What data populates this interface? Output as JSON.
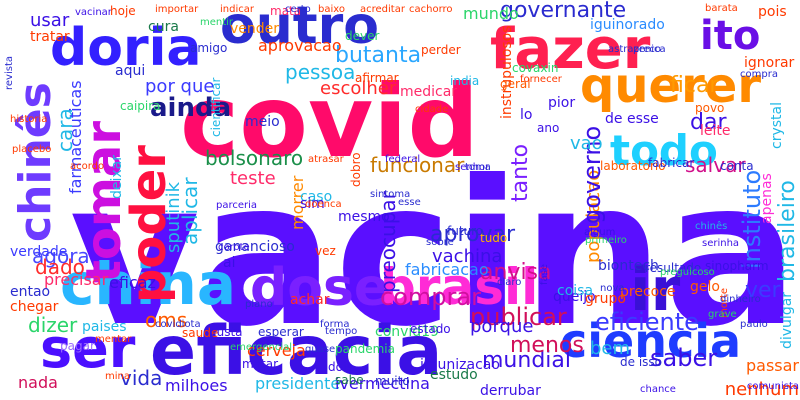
{
  "background": "#ffffff",
  "words": [
    {
      "text": "vacina",
      "color": "#5a0fff"
    },
    {
      "text": "covid",
      "color": "#ff0a6a"
    },
    {
      "text": "eficacia",
      "color": "#3b10e6"
    },
    {
      "text": "china",
      "color": "#29b6ff"
    },
    {
      "text": "dose",
      "color": "#7a20ff"
    },
    {
      "text": "brasil",
      "color": "#ff2bd6"
    },
    {
      "text": "ciencia",
      "color": "#1f3cff"
    },
    {
      "text": "ser",
      "color": "#4b0fff"
    },
    {
      "text": "fazer",
      "color": "#ff2050"
    },
    {
      "text": "querer",
      "color": "#ff8a00"
    },
    {
      "text": "outro",
      "color": "#2a2ccf"
    },
    {
      "text": "doria",
      "color": "#3320ff"
    },
    {
      "text": "tomar",
      "color": "#cc0fe0"
    },
    {
      "text": "poder",
      "color": "#ff1040"
    },
    {
      "text": "todo",
      "color": "#1ed0ff"
    },
    {
      "text": "ir",
      "color": "#3a10d6"
    },
    {
      "text": "ito",
      "color": "#6a0fe6"
    },
    {
      "text": "chinês",
      "color": "#6e3bff"
    },
    {
      "text": "governante",
      "color": "#2b2bcf"
    },
    {
      "text": "ainda",
      "color": "#1a1a8a"
    },
    {
      "text": "anvisa",
      "color": "#d10f8a"
    },
    {
      "text": "instituto",
      "color": "#2c7bff"
    },
    {
      "text": "comprar",
      "color": "#d10fa0"
    },
    {
      "text": "butanta",
      "color": "#2aa7ff"
    },
    {
      "text": "bolsonaro",
      "color": "#1b8f4a"
    },
    {
      "text": "funcionar",
      "color": "#c97a00"
    },
    {
      "text": "publicar",
      "color": "#d10f5a"
    },
    {
      "text": "tanto",
      "color": "#7a20ff"
    },
    {
      "text": "saber",
      "color": "#3b10e6"
    },
    {
      "text": "vida",
      "color": "#2a2ccf"
    },
    {
      "text": "aprovar",
      "color": "#2a2ccf"
    },
    {
      "text": "vachina",
      "color": "#3b10e6"
    },
    {
      "text": "agora",
      "color": "#4a4aff"
    },
    {
      "text": "dizer",
      "color": "#2ad56a"
    },
    {
      "text": "mundial",
      "color": "#3b10e6"
    },
    {
      "text": "eficiente",
      "color": "#3b3bff"
    },
    {
      "text": "menos",
      "color": "#d10f5a"
    },
    {
      "text": "oms",
      "color": "#ff5a00"
    },
    {
      "text": "ficar",
      "color": "#ff9a00"
    },
    {
      "text": "dar",
      "color": "#3b10e6"
    },
    {
      "text": "salvar",
      "color": "#d10f8a"
    },
    {
      "text": "usar",
      "color": "#3b10e6"
    },
    {
      "text": "tratar",
      "color": "#ff3a00"
    },
    {
      "text": "aprovacao",
      "color": "#ff3a00"
    },
    {
      "text": "fabricacao",
      "color": "#2a8cff"
    },
    {
      "text": "mundo",
      "color": "#2ad56a"
    },
    {
      "text": "teste",
      "color": "#ff2b6a"
    },
    {
      "text": "pessoa",
      "color": "#20b8e6"
    },
    {
      "text": "escolher",
      "color": "#ff2b2b"
    },
    {
      "text": "por que",
      "color": "#3b3bff"
    },
    {
      "text": "aplicar",
      "color": "#20b8e6"
    },
    {
      "text": "imunizacao",
      "color": "#3b10e6"
    },
    {
      "text": "pagar",
      "color": "#9a6aff"
    },
    {
      "text": "porque",
      "color": "#3b10e6"
    },
    {
      "text": "matar",
      "color": "#3b10e6"
    },
    {
      "text": "estudo",
      "color": "#1a7a4a"
    },
    {
      "text": "milhoes",
      "color": "#3b10e6"
    },
    {
      "text": "presidente",
      "color": "#20b8e6"
    },
    {
      "text": "nada",
      "color": "#d10f5a"
    },
    {
      "text": "ivermectina",
      "color": "#3b10e6"
    },
    {
      "text": "derrubar",
      "color": "#3b10e6"
    },
    {
      "text": "passar",
      "color": "#ff5a00"
    },
    {
      "text": "nenhum",
      "color": "#ff3a00"
    },
    {
      "text": "bem",
      "color": "#20b8e6"
    },
    {
      "text": "cerveja",
      "color": "#ff3a00"
    },
    {
      "text": "dado",
      "color": "#ff2b2b"
    },
    {
      "text": "aqui",
      "color": "#2a2ccf"
    },
    {
      "text": "morrer",
      "color": "#ff8a00"
    },
    {
      "text": "ver",
      "color": "#3b3bff"
    },
    {
      "text": "cara",
      "color": "#20b8e6"
    },
    {
      "text": "farmaceuticas",
      "color": "#3b3bff"
    },
    {
      "text": "brasileiro",
      "color": "#20b8e6"
    },
    {
      "text": "preocupar",
      "color": "#3b10e6"
    },
    {
      "text": "populacao",
      "color": "#ff8a00"
    },
    {
      "text": "governo",
      "color": "#3b10e6"
    },
    {
      "text": "vao",
      "color": "#20b8e6"
    },
    {
      "text": "sputinik",
      "color": "#20b8e6"
    },
    {
      "text": "ganancioso",
      "color": "#2a2ccf"
    },
    {
      "text": "queijo",
      "color": "#3b10e6"
    },
    {
      "text": "precisar",
      "color": "#ff2b6a"
    },
    {
      "text": "eficaz",
      "color": "#3b10e6"
    },
    {
      "text": "entao",
      "color": "#2a2ccf"
    },
    {
      "text": "chegar",
      "color": "#ff3a00"
    },
    {
      "text": "paises",
      "color": "#20b8e6"
    },
    {
      "text": "verdade",
      "color": "#3b3bff"
    },
    {
      "text": "convid19",
      "color": "#2ad56a"
    },
    {
      "text": "pior",
      "color": "#3b10e6"
    },
    {
      "text": "leite",
      "color": "#ff2b6a"
    },
    {
      "text": "biontech",
      "color": "#2a2ccf"
    },
    {
      "text": "meio",
      "color": "#2a2ccf"
    },
    {
      "text": "cura",
      "color": "#1a7a4a"
    },
    {
      "text": "vender",
      "color": "#ff8a00"
    },
    {
      "text": "caso",
      "color": "#20b8e6"
    },
    {
      "text": "mesmo",
      "color": "#3b10e6"
    },
    {
      "text": "de esse",
      "color": "#3b10e6"
    },
    {
      "text": "iguinorado",
      "color": "#2a8cff"
    },
    {
      "text": "cientificar",
      "color": "#20b8e6"
    },
    {
      "text": "lo",
      "color": "#3b10e6"
    },
    {
      "text": "ano",
      "color": "#3b10e6"
    },
    {
      "text": "estado",
      "color": "#3b10e6"
    },
    {
      "text": "grupo",
      "color": "#ff3a00"
    },
    {
      "text": "coisa",
      "color": "#20b8e6"
    },
    {
      "text": "ignorar",
      "color": "#ff3a00"
    },
    {
      "text": "pois",
      "color": "#ff3a00"
    },
    {
      "text": "sim",
      "color": "#3b10e6"
    },
    {
      "text": "tudo",
      "color": "#ffb000"
    },
    {
      "text": "amigo",
      "color": "#2a2ccf"
    },
    {
      "text": "india",
      "color": "#20b8e6"
    },
    {
      "text": "precoce",
      "color": "#ff5a00"
    },
    {
      "text": "dever",
      "color": "#2ad56a"
    },
    {
      "text": "covaxin",
      "color": "#2ad56a"
    },
    {
      "text": "crystal",
      "color": "#20b8e6"
    },
    {
      "text": "apenas",
      "color": "#ff2bd6"
    },
    {
      "text": "conta",
      "color": "#2a2ccf"
    },
    {
      "text": "de isso",
      "color": "#2a2ccf"
    },
    {
      "text": "achar",
      "color": "#ff2b2b"
    },
    {
      "text": "laboratorio",
      "color": "#ff5a00"
    },
    {
      "text": "instrupulosos",
      "color": "#ff3a00"
    },
    {
      "text": "dobro",
      "color": "#ff3a00"
    },
    {
      "text": "caipira",
      "color": "#2ad56a"
    },
    {
      "text": "futuro",
      "color": "#2a2ccf"
    },
    {
      "text": "gelo",
      "color": "#ff5a00"
    },
    {
      "text": "dois",
      "color": "#3b10e6"
    },
    {
      "text": "ai",
      "color": "#3b10e6"
    },
    {
      "text": "muito",
      "color": "#2a2ccf"
    },
    {
      "text": "pandemia",
      "color": "#2ad56a"
    },
    {
      "text": "sabe",
      "color": "#1a7a4a"
    },
    {
      "text": "saude",
      "color": "#ff3a00"
    },
    {
      "text": "custa",
      "color": "#3b10e6"
    },
    {
      "text": "esperar",
      "color": "#2a2ccf"
    },
    {
      "text": "divulgar",
      "color": "#20b8e6"
    },
    {
      "text": "sinopharm",
      "color": "#3b10e6"
    },
    {
      "text": "resultado",
      "color": "#2a2ccf"
    },
    {
      "text": "medicar",
      "color": "#ff2b6a"
    },
    {
      "text": "afirmar",
      "color": "#ff3a00"
    },
    {
      "text": "geral",
      "color": "#ff5a00"
    },
    {
      "text": "deixar",
      "color": "#20b8e6"
    },
    {
      "text": "povo",
      "color": "#ff5a00"
    },
    {
      "text": "fabricar",
      "color": "#2a2ccf"
    },
    {
      "text": "vez",
      "color": "#ff3a00"
    },
    {
      "text": "perder",
      "color": "#ff3a00"
    },
    {
      "text": "mata",
      "color": "#ff2b6a"
    },
    {
      "text": "vacinar",
      "color": "#3b10e6"
    },
    {
      "text": "hoje",
      "color": "#ff3a00"
    },
    {
      "text": "indicar",
      "color": "#ff3a00"
    },
    {
      "text": "mentir",
      "color": "#2ad56a"
    },
    {
      "text": "importar",
      "color": "#ff3a00"
    },
    {
      "text": "certo",
      "color": "#2a2ccf"
    },
    {
      "text": "baixo",
      "color": "#ff3a00"
    },
    {
      "text": "acreditar",
      "color": "#ff3a00"
    },
    {
      "text": "cachorro",
      "color": "#ff3a00"
    },
    {
      "text": "astrazenica",
      "color": "#2a2ccf"
    },
    {
      "text": "preco",
      "color": "#2a2ccf"
    },
    {
      "text": "barata",
      "color": "#ff3a00"
    },
    {
      "text": "fornecer",
      "color": "#ff3a00"
    },
    {
      "text": "revista",
      "color": "#2a2ccf"
    },
    {
      "text": "historia",
      "color": "#ff3a00"
    },
    {
      "text": "placebo",
      "color": "#ff3a00"
    },
    {
      "text": "acordo",
      "color": "#ff3a00"
    },
    {
      "text": "corote",
      "color": "#3b10e6"
    },
    {
      "text": "parceria",
      "color": "#3b10e6"
    },
    {
      "text": "doenca",
      "color": "#ff3a00"
    },
    {
      "text": "atrasar",
      "color": "#ff3a00"
    },
    {
      "text": "federal",
      "color": "#3b10e6"
    },
    {
      "text": "senhor",
      "color": "#3b10e6"
    },
    {
      "text": "toma",
      "color": "#2a2ccf"
    },
    {
      "text": "compra",
      "color": "#2a2ccf"
    },
    {
      "text": "emergencial",
      "color": "#2ad56a"
    },
    {
      "text": "fase",
      "color": "#3b10e6"
    },
    {
      "text": "tempo",
      "color": "#2a2ccf"
    },
    {
      "text": "morte",
      "color": "#ff3a00"
    },
    {
      "text": "chinês",
      "color": "#20b8e6"
    },
    {
      "text": "serinha",
      "color": "#3b10e6"
    },
    {
      "text": "paulo",
      "color": "#2a2ccf"
    },
    {
      "text": "claro",
      "color": "#2a2ccf"
    },
    {
      "text": "grave",
      "color": "#2ad56a"
    },
    {
      "text": "dinheiro",
      "color": "#2a2ccf"
    },
    {
      "text": "primeiro",
      "color": "#2ad56a"
    },
    {
      "text": "algum",
      "color": "#3b10e6"
    },
    {
      "text": "sobre",
      "color": "#2a2ccf"
    },
    {
      "text": "mentar",
      "color": "#ff3a00"
    },
    {
      "text": "esse",
      "color": "#2a2ccf"
    },
    {
      "text": "preguicoso",
      "color": "#2ad56a"
    },
    {
      "text": "covidiota",
      "color": "#2a2ccf"
    },
    {
      "text": "cidade",
      "color": "#ff3a00"
    },
    {
      "text": "sintoma",
      "color": "#2a2ccf"
    },
    {
      "text": "mina",
      "color": "#ff3a00"
    },
    {
      "text": "forma",
      "color": "#2a2ccf"
    },
    {
      "text": "comunista",
      "color": "#3b10e6"
    },
    {
      "text": "plano",
      "color": "#2a2ccf"
    },
    {
      "text": "chance",
      "color": "#3b10e6"
    },
    {
      "text": "nova",
      "color": "#2a2ccf"
    },
    {
      "text": "quase",
      "color": "#2a2ccf"
    }
  ]
}
